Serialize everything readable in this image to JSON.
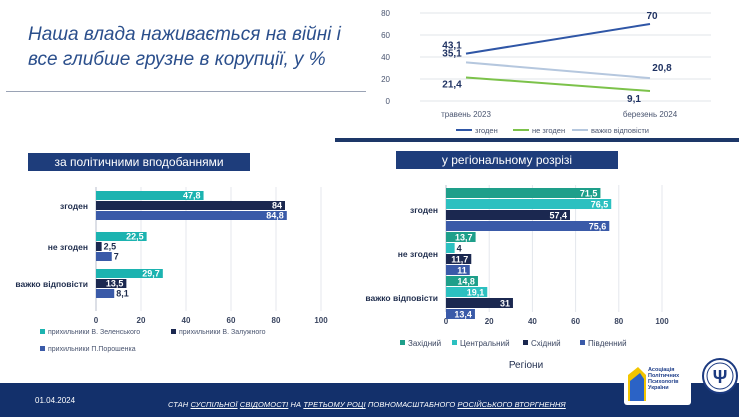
{
  "title": {
    "line1": "Наша влада наживається на війні і",
    "line2": "все глибше грузне в корупції, у %"
  },
  "chart_data": [
    {
      "type": "line",
      "x": [
        "травень 2023",
        "березень 2024"
      ],
      "ylim": [
        0,
        80
      ],
      "yticks": [
        0,
        20,
        40,
        60,
        80
      ],
      "series": [
        {
          "name": "згоден",
          "values": [
            43.1,
            70
          ],
          "labels": [
            "43,1",
            "70"
          ],
          "color": "#2f56a6"
        },
        {
          "name": "не згоден",
          "values": [
            21.4,
            9.1
          ],
          "labels": [
            "21,4",
            "9,1"
          ],
          "color": "#7cc24a"
        },
        {
          "name": "важко відповісти",
          "values": [
            35.1,
            20.8
          ],
          "labels": [
            "35,1",
            "20,8"
          ],
          "color": "#b5c7de"
        }
      ],
      "ytick_labels": [
        "0",
        "20",
        "40",
        "60",
        "80"
      ]
    },
    {
      "type": "bar",
      "orientation": "horizontal",
      "title": "за політичними вподобаннями",
      "categories": [
        "згоден",
        "не згоден",
        "важко відповісти"
      ],
      "xlim": [
        0,
        100
      ],
      "xticks": [
        0,
        20,
        40,
        60,
        80,
        100
      ],
      "xtick_labels": [
        "0",
        "20",
        "40",
        "60",
        "80",
        "100"
      ],
      "series": [
        {
          "name": "прихильники В. Зеленського",
          "values": [
            47.8,
            22.5,
            29.7
          ],
          "labels": [
            "47,8",
            "22,5",
            "29,7"
          ],
          "color": "#1cb3b0"
        },
        {
          "name": "прихильники В. Залужного",
          "values": [
            84,
            2.5,
            13.5
          ],
          "labels": [
            "84",
            "2,5",
            "13,5"
          ],
          "color": "#1b2850"
        },
        {
          "name": "прихильники П.Порошенка",
          "values": [
            84.8,
            7,
            8.1
          ],
          "labels": [
            "84,8",
            "7",
            "8,1"
          ],
          "color": "#3a5aa8"
        }
      ]
    },
    {
      "type": "bar",
      "orientation": "horizontal",
      "title": "у регіональному розрізі",
      "xlabel": "Регіони",
      "categories": [
        "згоден",
        "не згоден",
        "важко відповісти"
      ],
      "xlim": [
        0,
        100
      ],
      "xticks": [
        0,
        20,
        40,
        60,
        80,
        100
      ],
      "xtick_labels": [
        "0",
        "20",
        "40",
        "60",
        "80",
        "100"
      ],
      "series": [
        {
          "name": "Західний",
          "values": [
            71.5,
            13.7,
            14.8
          ],
          "labels": [
            "71,5",
            "13,7",
            "14,8"
          ],
          "color": "#1e9f8a"
        },
        {
          "name": "Центральний",
          "values": [
            76.5,
            4,
            19.1
          ],
          "labels": [
            "76,5",
            "4",
            "19,1"
          ],
          "color": "#2cc0c0"
        },
        {
          "name": "Східний",
          "values": [
            57.4,
            11.7,
            31
          ],
          "labels": [
            "57,4",
            "11,7",
            "31"
          ],
          "color": "#1b2850"
        },
        {
          "name": "Південний",
          "values": [
            75.6,
            11,
            13.4
          ],
          "labels": [
            "75,6",
            "11",
            "13,4"
          ],
          "color": "#3a5aa8"
        }
      ]
    }
  ],
  "footer": {
    "date": "01.04.2024",
    "p1": "СТАН ",
    "u1": "СУСПІЛЬНОЇ",
    "p2": " ",
    "u2": "СВІДОМОСТІ",
    "p3": " НА ",
    "u3": "ТРЕТЬОМУ РОЦІ",
    "p4": " ПОВНОМАСШТАБНОГО ",
    "u4": "РОСІЙСЬКОГО ВТОРГНЕННЯ",
    "logo_text": [
      "Асоціація",
      "Політичних",
      "Психологів",
      "України"
    ]
  }
}
